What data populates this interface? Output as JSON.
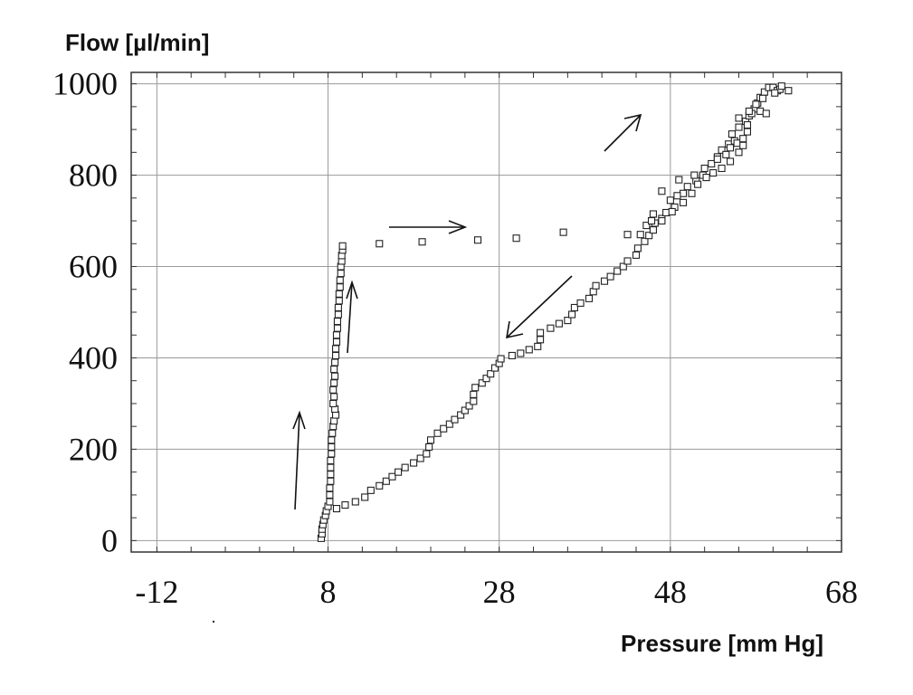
{
  "chart_data": {
    "type": "scatter",
    "ylabel": "Flow [µl/min]",
    "xlabel": "Pressure [mm Hg]",
    "xlim": [
      -15,
      68
    ],
    "ylim": [
      -25,
      1025
    ],
    "xticks": [
      -12,
      8,
      28,
      48,
      68
    ],
    "xtick_labels": [
      "-12",
      "8",
      "28",
      "48",
      "68"
    ],
    "yticks": [
      0,
      200,
      400,
      600,
      800,
      1000
    ],
    "ytick_labels": [
      "0",
      "200",
      "400",
      "600",
      "800",
      "1000"
    ],
    "grid": true,
    "marker": "open-square",
    "series": [
      {
        "points": [
          [
            7.2,
            5
          ],
          [
            7.3,
            15
          ],
          [
            7.3,
            25
          ],
          [
            7.4,
            35
          ],
          [
            7.5,
            45
          ],
          [
            7.7,
            55
          ],
          [
            7.8,
            65
          ],
          [
            8.0,
            75
          ],
          [
            8.2,
            85
          ],
          [
            8.2,
            100
          ],
          [
            8.2,
            115
          ],
          [
            8.3,
            130
          ],
          [
            8.3,
            145
          ],
          [
            8.3,
            160
          ],
          [
            8.3,
            175
          ],
          [
            8.4,
            190
          ],
          [
            8.4,
            205
          ],
          [
            8.4,
            220
          ],
          [
            8.5,
            235
          ],
          [
            8.6,
            250
          ],
          [
            8.7,
            262
          ],
          [
            8.9,
            275
          ],
          [
            8.8,
            288
          ],
          [
            8.6,
            300
          ],
          [
            8.7,
            315
          ],
          [
            8.6,
            330
          ],
          [
            8.7,
            345
          ],
          [
            8.8,
            360
          ],
          [
            8.7,
            375
          ],
          [
            8.8,
            390
          ],
          [
            8.9,
            405
          ],
          [
            8.9,
            420
          ],
          [
            9.0,
            435
          ],
          [
            9.0,
            450
          ],
          [
            9.1,
            465
          ],
          [
            9.1,
            480
          ],
          [
            9.2,
            495
          ],
          [
            9.2,
            510
          ],
          [
            9.3,
            525
          ],
          [
            9.3,
            540
          ],
          [
            9.4,
            555
          ],
          [
            9.4,
            570
          ],
          [
            9.5,
            585
          ],
          [
            9.5,
            600
          ],
          [
            9.6,
            612
          ],
          [
            9.6,
            624
          ],
          [
            9.7,
            636
          ],
          [
            9.7,
            645
          ]
        ]
      },
      {
        "points": [
          [
            14.0,
            650
          ],
          [
            19.0,
            654
          ],
          [
            25.5,
            658
          ],
          [
            30.0,
            662
          ],
          [
            35.5,
            675
          ]
        ]
      },
      {
        "points": [
          [
            9.0,
            70
          ],
          [
            10.0,
            78
          ],
          [
            11.2,
            85
          ],
          [
            12.3,
            95
          ],
          [
            13.0,
            110
          ],
          [
            14.0,
            120
          ],
          [
            14.8,
            130
          ],
          [
            15.5,
            140
          ],
          [
            16.2,
            150
          ],
          [
            17.0,
            160
          ],
          [
            18.0,
            170
          ],
          [
            18.8,
            180
          ],
          [
            19.5,
            190
          ],
          [
            19.8,
            205
          ],
          [
            20.0,
            220
          ],
          [
            20.8,
            235
          ],
          [
            21.5,
            245
          ],
          [
            22.2,
            255
          ],
          [
            22.8,
            265
          ],
          [
            23.5,
            275
          ],
          [
            24.0,
            285
          ],
          [
            24.5,
            295
          ],
          [
            25.0,
            305
          ],
          [
            25.0,
            320
          ],
          [
            25.2,
            335
          ],
          [
            26.0,
            345
          ],
          [
            26.5,
            355
          ],
          [
            27.0,
            365
          ],
          [
            27.5,
            378
          ],
          [
            28.0,
            388
          ],
          [
            28.2,
            398
          ],
          [
            29.5,
            405
          ],
          [
            30.5,
            410
          ],
          [
            31.5,
            418
          ],
          [
            32.5,
            425
          ],
          [
            32.8,
            440
          ],
          [
            32.8,
            455
          ],
          [
            34.0,
            465
          ],
          [
            35.0,
            475
          ],
          [
            36.0,
            482
          ],
          [
            36.5,
            495
          ],
          [
            36.8,
            510
          ],
          [
            37.5,
            520
          ],
          [
            38.5,
            530
          ],
          [
            39.0,
            545
          ],
          [
            39.3,
            558
          ],
          [
            40.3,
            568
          ],
          [
            41.0,
            578
          ],
          [
            41.8,
            590
          ],
          [
            42.5,
            600
          ],
          [
            43.0,
            612
          ],
          [
            44.0,
            625
          ],
          [
            44.2,
            640
          ],
          [
            45.0,
            655
          ],
          [
            45.5,
            668
          ],
          [
            46.0,
            680
          ],
          [
            46.2,
            695
          ],
          [
            47.0,
            705
          ],
          [
            47.5,
            718
          ],
          [
            48.5,
            730
          ],
          [
            48.0,
            745
          ],
          [
            49.5,
            760
          ],
          [
            50.0,
            775
          ],
          [
            51.0,
            788
          ],
          [
            51.8,
            800
          ],
          [
            52.0,
            815
          ],
          [
            52.8,
            825
          ],
          [
            53.5,
            840
          ],
          [
            54.0,
            855
          ],
          [
            54.8,
            868
          ],
          [
            55.5,
            875
          ],
          [
            55.2,
            890
          ],
          [
            56.0,
            905
          ],
          [
            56.8,
            918
          ],
          [
            57.2,
            930
          ],
          [
            57.8,
            945
          ],
          [
            58.2,
            958
          ],
          [
            58.5,
            970
          ],
          [
            59.0,
            982
          ],
          [
            59.5,
            992
          ],
          [
            60.0,
            992
          ],
          [
            60.5,
            985
          ],
          [
            47.0,
            700
          ],
          [
            46.0,
            715
          ],
          [
            45.2,
            690
          ],
          [
            44.5,
            670
          ],
          [
            48.8,
            755
          ],
          [
            49.5,
            740
          ],
          [
            50.5,
            760
          ],
          [
            51.2,
            780
          ],
          [
            52.2,
            795
          ],
          [
            53.0,
            805
          ],
          [
            54.0,
            815
          ],
          [
            53.5,
            835
          ],
          [
            54.5,
            845
          ],
          [
            55.0,
            860
          ],
          [
            56.0,
            850
          ],
          [
            55.8,
            870
          ],
          [
            56.5,
            880
          ],
          [
            57.0,
            895
          ],
          [
            56.0,
            925
          ],
          [
            57.5,
            935
          ],
          [
            58.5,
            940
          ],
          [
            58.0,
            955
          ],
          [
            57.0,
            910
          ],
          [
            58.8,
            968
          ],
          [
            60.8,
            988
          ],
          [
            61.0,
            995
          ],
          [
            43.0,
            670
          ],
          [
            45.8,
            700
          ],
          [
            49.0,
            790
          ],
          [
            50.8,
            800
          ],
          [
            47.0,
            765
          ],
          [
            48.2,
            720
          ],
          [
            55.0,
            830
          ],
          [
            56.5,
            865
          ],
          [
            57.2,
            940
          ],
          [
            59.2,
            935
          ],
          [
            60.2,
            980
          ],
          [
            61.8,
            985
          ]
        ]
      }
    ]
  }
}
